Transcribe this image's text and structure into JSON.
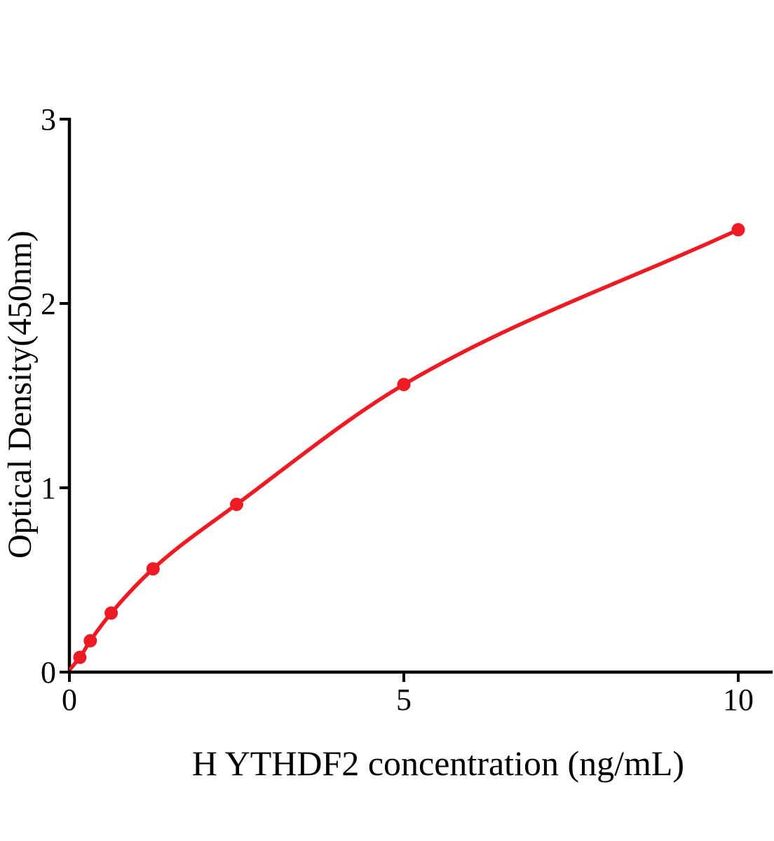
{
  "chart_data": {
    "type": "scatter",
    "subtype": "standard-curve-with-fitted-line",
    "title": "",
    "xlabel": "H YTHDF2 concentration (ng/mL)",
    "ylabel": "Optical Density(450nm)",
    "x": [
      0.156,
      0.3125,
      0.625,
      1.25,
      2.5,
      5,
      10
    ],
    "y": [
      0.08,
      0.17,
      0.32,
      0.56,
      0.91,
      1.56,
      2.4
    ],
    "curve_start": {
      "x": 0.02,
      "y": 0.02
    },
    "x_ticks": [
      {
        "value": 0,
        "label": "0"
      },
      {
        "value": 5,
        "label": "5"
      },
      {
        "value": 10,
        "label": "10"
      }
    ],
    "y_ticks": [
      {
        "value": 0,
        "label": "0"
      },
      {
        "value": 1,
        "label": "1"
      },
      {
        "value": 2,
        "label": "2"
      },
      {
        "value": 3,
        "label": "3"
      }
    ],
    "xlim": [
      0,
      10.5
    ],
    "ylim": [
      0,
      3
    ],
    "grid": false,
    "legend": null,
    "series_color": "#ED1C24",
    "axis_color": "#000000",
    "marker": "circle"
  }
}
